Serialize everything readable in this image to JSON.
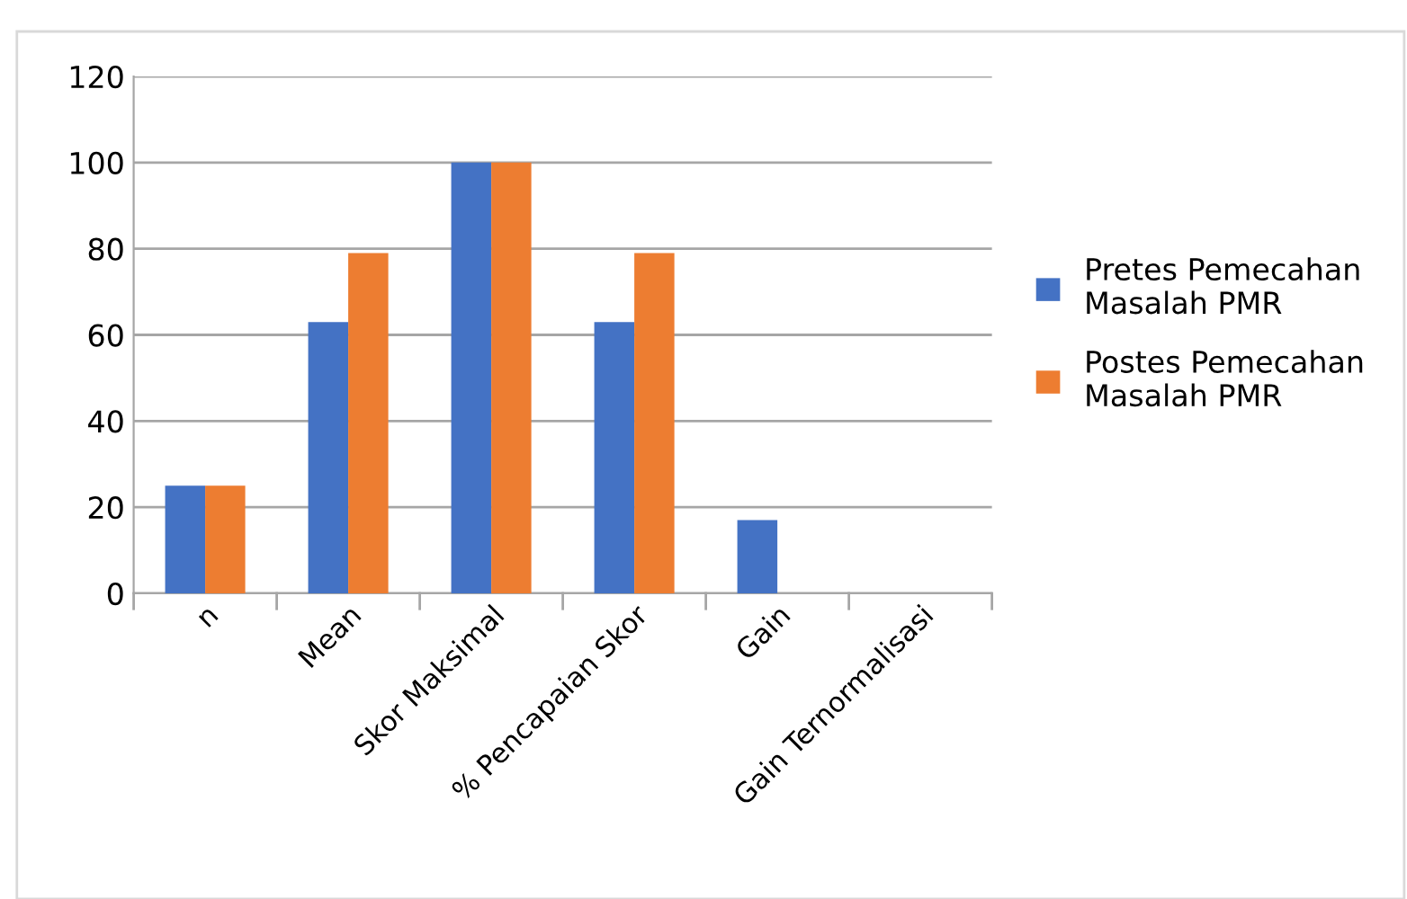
{
  "chart_data": {
    "type": "bar",
    "categories": [
      "n",
      "Mean",
      "Skor Maksimal",
      "% Pencapaian Skor",
      "Gain",
      "Gain Ternormalisasi"
    ],
    "series": [
      {
        "name": "Pretes Pemecahan Masalah PMR",
        "color": "#4472c4",
        "values": [
          25,
          63,
          100,
          63,
          17,
          null
        ]
      },
      {
        "name": "Postes Pemecahan Masalah PMR",
        "color": "#ed7d31",
        "values": [
          25,
          79,
          100,
          79,
          null,
          null
        ]
      }
    ],
    "ylim": [
      0,
      120
    ],
    "yticks": [
      0,
      20,
      40,
      60,
      80,
      100,
      120
    ],
    "grid": "y",
    "legend": "right"
  }
}
